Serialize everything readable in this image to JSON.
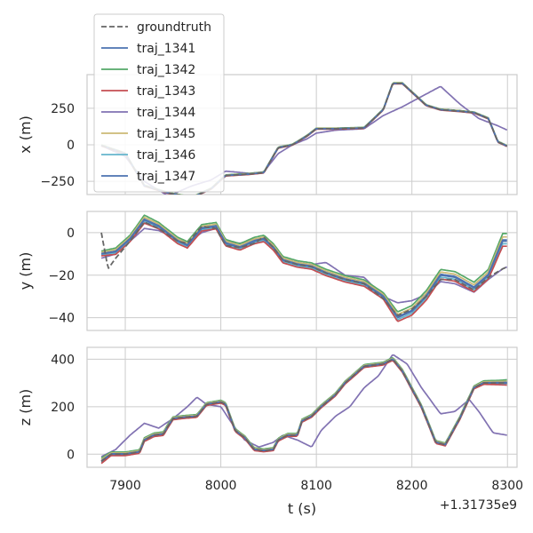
{
  "chart_data": {
    "type": "line",
    "shared_x": {
      "label": "t (s)",
      "range": [
        7860,
        8310
      ],
      "ticks": [
        7900,
        8000,
        8100,
        8200,
        8300
      ],
      "tick_labels": [
        "7900",
        "8000",
        "8100",
        "8200",
        "8300"
      ],
      "offset_label": "+1.31735e9"
    },
    "legend": {
      "placement": "upper-left",
      "entries": [
        "groundtruth",
        "traj_1341",
        "traj_1342",
        "traj_1343",
        "traj_1344",
        "traj_1345",
        "traj_1346",
        "traj_1347"
      ]
    },
    "series_styles": [
      {
        "name": "groundtruth",
        "color": "#666666",
        "dash": "dashed"
      },
      {
        "name": "traj_1341",
        "color": "#4C72B0",
        "dash": "solid"
      },
      {
        "name": "traj_1342",
        "color": "#55A868",
        "dash": "solid"
      },
      {
        "name": "traj_1343",
        "color": "#C44E52",
        "dash": "solid"
      },
      {
        "name": "traj_1344",
        "color": "#8172B2",
        "dash": "solid"
      },
      {
        "name": "traj_1345",
        "color": "#CCB974",
        "dash": "solid"
      },
      {
        "name": "traj_1346",
        "color": "#64B5CD",
        "dash": "solid"
      },
      {
        "name": "traj_1347",
        "color": "#4C72B0",
        "dash": "solid"
      }
    ],
    "panels": [
      {
        "ylabel": "x (m)",
        "ylim": [
          -340,
          480
        ],
        "yticks": [
          -250,
          0,
          250
        ],
        "ytick_labels": [
          "−250",
          "0",
          "250"
        ],
        "main_track": {
          "x": [
            7875,
            7900,
            7920,
            7945,
            7970,
            7990,
            8005,
            8030,
            8045,
            8060,
            8075,
            8090,
            8100,
            8120,
            8150,
            8170,
            8180,
            8190,
            8200,
            8215,
            8230,
            8250,
            8265,
            8280,
            8290,
            8300
          ],
          "y": [
            -5,
            -60,
            -280,
            -330,
            -360,
            -300,
            -210,
            -200,
            -190,
            -20,
            0,
            60,
            110,
            110,
            115,
            240,
            420,
            420,
            360,
            270,
            240,
            230,
            220,
            180,
            20,
            -10
          ]
        },
        "traj_1344": {
          "x": [
            7875,
            7900,
            7920,
            7945,
            7970,
            7990,
            8005,
            8030,
            8045,
            8060,
            8075,
            8090,
            8100,
            8120,
            8150,
            8170,
            8190,
            8210,
            8230,
            8250,
            8270,
            8290,
            8300
          ],
          "y": [
            -5,
            -80,
            -250,
            -350,
            -280,
            -240,
            -180,
            -195,
            -185,
            -60,
            0,
            40,
            80,
            100,
            110,
            200,
            260,
            330,
            400,
            280,
            180,
            130,
            100
          ]
        }
      },
      {
        "ylabel": "y (m)",
        "ylim": [
          -46,
          10
        ],
        "yticks": [
          -40,
          -20,
          0
        ],
        "ytick_labels": [
          "−40",
          "−20",
          "0"
        ],
        "main_track": {
          "x": [
            7875,
            7890,
            7905,
            7920,
            7935,
            7955,
            7965,
            7980,
            7995,
            8005,
            8020,
            8035,
            8045,
            8055,
            8065,
            8080,
            8095,
            8110,
            8130,
            8150,
            8170,
            8185,
            8200,
            8215,
            8230,
            8245,
            8265,
            8280,
            8295,
            8300
          ],
          "y": [
            -10,
            -9,
            -3,
            6,
            3,
            -4,
            -6,
            2,
            3,
            -5,
            -7,
            -4,
            -3,
            -7,
            -13,
            -15,
            -16,
            -19,
            -22,
            -24,
            -30,
            -40,
            -37,
            -30,
            -20,
            -21,
            -26,
            -20,
            -4,
            -4
          ]
        },
        "spread": [
          1.5,
          2,
          2,
          2.5,
          2,
          2,
          2,
          2,
          2,
          2,
          2,
          2,
          2,
          2,
          2,
          2,
          2,
          2,
          2,
          2,
          2,
          3,
          3,
          3,
          3,
          3,
          3,
          3,
          4,
          4
        ],
        "traj_1344": {
          "x": [
            7875,
            7890,
            7905,
            7920,
            7935,
            7955,
            7965,
            7980,
            7995,
            8005,
            8020,
            8035,
            8045,
            8055,
            8065,
            8080,
            8095,
            8110,
            8130,
            8150,
            8170,
            8185,
            8200,
            8215,
            8230,
            8245,
            8265,
            8280,
            8295,
            8300
          ],
          "y": [
            -12,
            -10,
            -4,
            2,
            1,
            -3,
            -5,
            0,
            2,
            -4,
            -5,
            -3,
            -3,
            -6,
            -12,
            -14,
            -15,
            -14,
            -20,
            -21,
            -30,
            -33,
            -32,
            -29,
            -23,
            -24,
            -28,
            -22,
            -17,
            -16
          ]
        },
        "groundtruth": {
          "x": [
            7875,
            7882,
            7890,
            7905,
            7920,
            7935,
            7955,
            7965,
            7980,
            7995,
            8005,
            8020,
            8035,
            8045,
            8055,
            8065,
            8080,
            8095,
            8110,
            8130,
            8150,
            8170,
            8185,
            8200,
            8215,
            8230,
            8245,
            8265,
            8280,
            8295,
            8300
          ],
          "y": [
            0,
            -17,
            -12,
            -4,
            5,
            2,
            -4,
            -5,
            3,
            2,
            -6,
            -7,
            -5,
            -2,
            -7,
            -13,
            -15,
            -16,
            -19,
            -22,
            -24,
            -31,
            -39,
            -36,
            -30,
            -22,
            -22,
            -27,
            -21,
            -17,
            -16
          ]
        }
      },
      {
        "ylabel": "z (m)",
        "ylim": [
          -55,
          450
        ],
        "yticks": [
          0,
          200,
          400
        ],
        "ytick_labels": [
          "0",
          "200",
          "400"
        ],
        "main_track": {
          "x": [
            7875,
            7885,
            7900,
            7915,
            7920,
            7930,
            7940,
            7945,
            7950,
            7960,
            7975,
            7985,
            8000,
            8005,
            8015,
            8025,
            8035,
            8045,
            8055,
            8060,
            8070,
            8080,
            8085,
            8095,
            8105,
            8120,
            8130,
            8150,
            8170,
            8180,
            8190,
            8210,
            8225,
            8235,
            8250,
            8265,
            8275,
            8290,
            8300
          ],
          "y": [
            -30,
            0,
            0,
            10,
            60,
            80,
            85,
            120,
            150,
            155,
            160,
            210,
            220,
            210,
            100,
            70,
            20,
            15,
            20,
            60,
            80,
            80,
            140,
            160,
            200,
            250,
            300,
            370,
            380,
            400,
            350,
            200,
            50,
            40,
            150,
            280,
            300,
            300,
            300
          ]
        },
        "spread": [
          15,
          10,
          10,
          10,
          10,
          10,
          10,
          10,
          8,
          8,
          8,
          8,
          8,
          8,
          8,
          8,
          8,
          8,
          8,
          8,
          8,
          8,
          8,
          8,
          8,
          8,
          8,
          8,
          8,
          8,
          8,
          8,
          8,
          8,
          8,
          8,
          10,
          12,
          15
        ],
        "traj_1344": {
          "x": [
            7875,
            7890,
            7905,
            7920,
            7935,
            7950,
            7965,
            7975,
            7985,
            8000,
            8015,
            8025,
            8040,
            8055,
            8065,
            8080,
            8095,
            8105,
            8120,
            8135,
            8150,
            8165,
            8180,
            8195,
            8210,
            8230,
            8245,
            8260,
            8270,
            8285,
            8300
          ],
          "y": [
            -10,
            20,
            80,
            130,
            110,
            150,
            200,
            240,
            210,
            200,
            110,
            60,
            30,
            50,
            80,
            60,
            30,
            100,
            160,
            200,
            280,
            330,
            420,
            380,
            280,
            170,
            180,
            230,
            180,
            90,
            80
          ]
        }
      }
    ]
  }
}
